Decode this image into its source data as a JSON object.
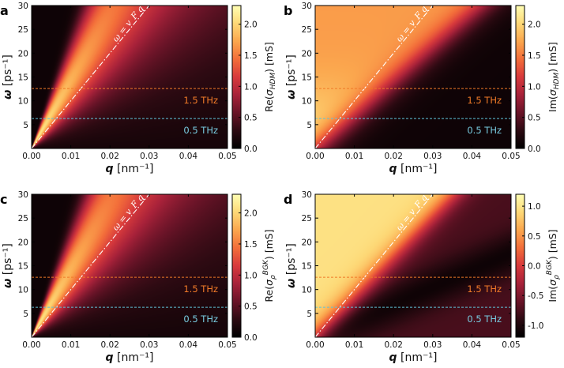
{
  "colors": {
    "colormap": [
      "#000000",
      "#2d0a12",
      "#6a1428",
      "#a8223a",
      "#d83a3c",
      "#f36e3a",
      "#fba74e",
      "#fdd977",
      "#ffffb4"
    ],
    "line_1_5": "#f07a28",
    "line_0_5": "#5fc3d9",
    "text_1_5": "#f07a28",
    "text_0_5": "#78cbe0",
    "dispersion": "#ffffff"
  },
  "chart_data": [
    {
      "type": "heatmap",
      "panel_label": "a",
      "quantity": "real",
      "xlabel": "q [nm⁻¹]",
      "ylabel": "ω [ps⁻¹]",
      "xlim": [
        0.0,
        0.05
      ],
      "ylim": [
        0,
        30
      ],
      "xticks": [
        "0.00",
        "0.01",
        "0.02",
        "0.03",
        "0.04",
        "0.05"
      ],
      "yticks": [
        "5",
        "10",
        "15",
        "20",
        "25",
        "30"
      ],
      "colorbar_label": "Re(σ_HDM) [mS]",
      "colorbar_range": [
        0.0,
        2.3
      ],
      "colorbar_ticks": [
        "0.0",
        "0.5",
        "1.0",
        "1.5",
        "2.0"
      ],
      "dispersion_label": "ω = v_F q",
      "dispersion_slope": 1000,
      "horizontal_lines": [
        {
          "omega": 12.57,
          "label": "1.5 THz",
          "style": "orange"
        },
        {
          "omega": 6.28,
          "label": "0.5 THz",
          "style": "cyan"
        }
      ]
    },
    {
      "type": "heatmap",
      "panel_label": "b",
      "quantity": "imag",
      "xlabel": "q [nm⁻¹]",
      "ylabel": "ω [ps⁻¹]",
      "xlim": [
        0.0,
        0.05
      ],
      "ylim": [
        0,
        30
      ],
      "xticks": [
        "0.00",
        "0.01",
        "0.02",
        "0.03",
        "0.04",
        "0.05"
      ],
      "yticks": [
        "5",
        "10",
        "15",
        "20",
        "25",
        "30"
      ],
      "colorbar_label": "Im(σ_HDM) [mS]",
      "colorbar_range": [
        0.0,
        2.3
      ],
      "colorbar_ticks": [
        "0.0",
        "0.5",
        "1.0",
        "1.5",
        "2.0"
      ],
      "dispersion_label": "ω = v_F q",
      "dispersion_slope": 1000,
      "horizontal_lines": [
        {
          "omega": 12.57,
          "label": "1.5 THz",
          "style": "orange"
        },
        {
          "omega": 6.28,
          "label": "0.5 THz",
          "style": "cyan"
        }
      ]
    },
    {
      "type": "heatmap",
      "panel_label": "c",
      "quantity": "real",
      "xlabel": "q [nm⁻¹]",
      "ylabel": "ω [ps⁻¹]",
      "xlim": [
        0.0,
        0.05
      ],
      "ylim": [
        0,
        30
      ],
      "xticks": [
        "0.00",
        "0.01",
        "0.02",
        "0.03",
        "0.04",
        "0.05"
      ],
      "yticks": [
        "5",
        "10",
        "15",
        "20",
        "25",
        "30"
      ],
      "colorbar_label": "Re(σ_ρ^BGK) [mS]",
      "colorbar_range": [
        0.0,
        2.3
      ],
      "colorbar_ticks": [
        "0.0",
        "0.5",
        "1.0",
        "1.5",
        "2.0"
      ],
      "dispersion_label": "ω = v_F q",
      "dispersion_slope": 1000,
      "horizontal_lines": [
        {
          "omega": 12.57,
          "label": "1.5 THz",
          "style": "orange"
        },
        {
          "omega": 6.28,
          "label": "0.5 THz",
          "style": "cyan"
        }
      ]
    },
    {
      "type": "heatmap",
      "panel_label": "d",
      "quantity": "imag_bgk",
      "xlabel": "q [nm⁻¹]",
      "ylabel": "ω [ps⁻¹]",
      "xlim": [
        0.0,
        0.05
      ],
      "ylim": [
        0,
        30
      ],
      "xticks": [
        "0.00",
        "0.01",
        "0.02",
        "0.03",
        "0.04",
        "0.05"
      ],
      "yticks": [
        "5",
        "10",
        "15",
        "20",
        "25",
        "30"
      ],
      "colorbar_label": "Im(σ_ρ^BGK) [mS]",
      "colorbar_range": [
        -1.2,
        1.2
      ],
      "colorbar_ticks": [
        "-1.0",
        "-0.5",
        "0.0",
        "0.5",
        "1.0"
      ],
      "dispersion_label": "ω = v_F q",
      "dispersion_slope": 1000,
      "horizontal_lines": [
        {
          "omega": 12.57,
          "label": "1.5 THz",
          "style": "orange"
        },
        {
          "omega": 6.28,
          "label": "0.5 THz",
          "style": "cyan"
        }
      ]
    }
  ]
}
